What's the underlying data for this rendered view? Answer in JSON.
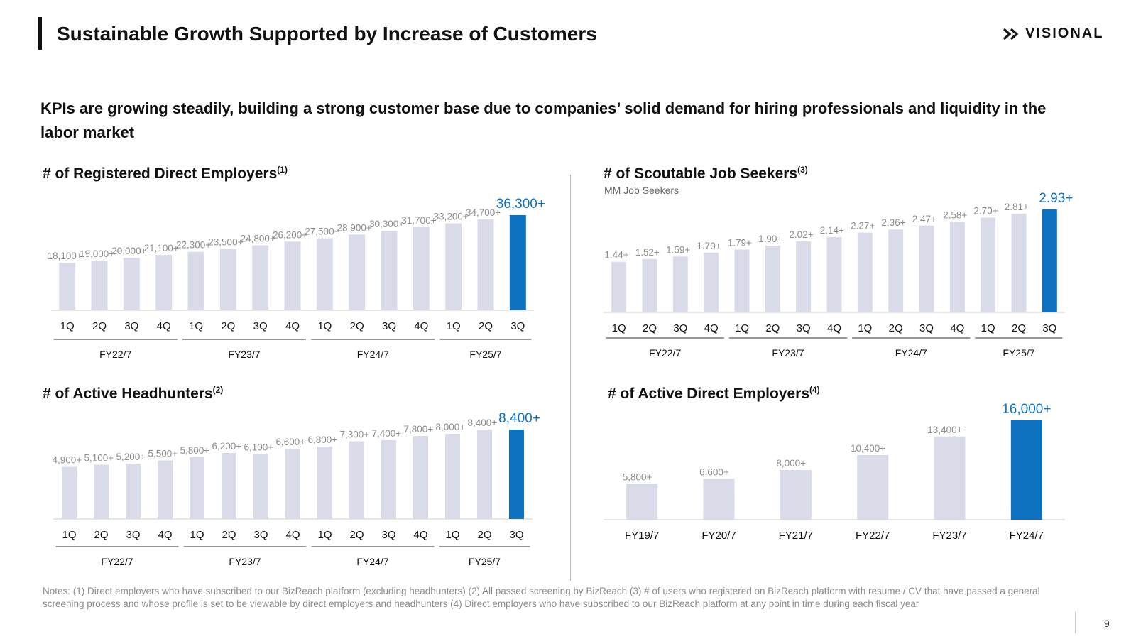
{
  "header": {
    "title": "Sustainable Growth Supported by Increase of Customers",
    "logo_text": "VISIONAL"
  },
  "subtitle": "KPIs are growing steadily, building a strong customer base due to companies’ solid demand for hiring professionals and liquidity in the labor market",
  "colors": {
    "bar": "#d9dce8",
    "highlight": "#0d72c0",
    "label": "#8c8c8c",
    "axis": "#cccccc"
  },
  "chart_data": [
    {
      "id": "registered",
      "type": "bar",
      "title": "# of Registered Direct Employers",
      "note_ref": "(1)",
      "unit": "",
      "categories": [
        "1Q",
        "2Q",
        "3Q",
        "4Q",
        "1Q",
        "2Q",
        "3Q",
        "4Q",
        "1Q",
        "2Q",
        "3Q",
        "4Q",
        "1Q",
        "2Q",
        "3Q"
      ],
      "values": [
        18100,
        19000,
        20000,
        21100,
        22300,
        23500,
        24800,
        26200,
        27500,
        28900,
        30300,
        31700,
        33200,
        34700,
        36300
      ],
      "labels": [
        "18,100+",
        "19,000+",
        "20,000+",
        "21,100+",
        "22,300+",
        "23,500+",
        "24,800+",
        "26,200+",
        "27,500+",
        "28,900+",
        "30,300+",
        "31,700+",
        "33,200+",
        "34,700+",
        "36,300+"
      ],
      "groups": [
        {
          "label": "FY22/7",
          "count": 4
        },
        {
          "label": "FY23/7",
          "count": 4
        },
        {
          "label": "FY24/7",
          "count": 4
        },
        {
          "label": "FY25/7",
          "count": 3
        }
      ],
      "ylim": [
        0,
        36300
      ],
      "highlight_last": true
    },
    {
      "id": "seekers",
      "type": "bar",
      "title": "# of Scoutable Job Seekers",
      "note_ref": "(3)",
      "unit": "MM Job Seekers",
      "categories": [
        "1Q",
        "2Q",
        "3Q",
        "4Q",
        "1Q",
        "2Q",
        "3Q",
        "4Q",
        "1Q",
        "2Q",
        "3Q",
        "4Q",
        "1Q",
        "2Q",
        "3Q"
      ],
      "values": [
        1.44,
        1.52,
        1.59,
        1.7,
        1.79,
        1.9,
        2.02,
        2.14,
        2.27,
        2.36,
        2.47,
        2.58,
        2.7,
        2.81,
        2.93
      ],
      "labels": [
        "1.44+",
        "1.52+",
        "1.59+",
        "1.70+",
        "1.79+",
        "1.90+",
        "2.02+",
        "2.14+",
        "2.27+",
        "2.36+",
        "2.47+",
        "2.58+",
        "2.70+",
        "2.81+",
        "2.93+"
      ],
      "groups": [
        {
          "label": "FY22/7",
          "count": 4
        },
        {
          "label": "FY23/7",
          "count": 4
        },
        {
          "label": "FY24/7",
          "count": 4
        },
        {
          "label": "FY25/7",
          "count": 3
        }
      ],
      "ylim": [
        0,
        2.93
      ],
      "highlight_last": true
    },
    {
      "id": "headhunters",
      "type": "bar",
      "title": "# of Active Headhunters",
      "note_ref": "(2)",
      "unit": "",
      "categories": [
        "1Q",
        "2Q",
        "3Q",
        "4Q",
        "1Q",
        "2Q",
        "3Q",
        "4Q",
        "1Q",
        "2Q",
        "3Q",
        "4Q",
        "1Q",
        "2Q",
        "3Q"
      ],
      "values": [
        4900,
        5100,
        5200,
        5500,
        5800,
        6200,
        6100,
        6600,
        6800,
        7300,
        7400,
        7800,
        8000,
        8400,
        8400
      ],
      "labels": [
        "4,900+",
        "5,100+",
        "5,200+",
        "5,500+",
        "5,800+",
        "6,200+",
        "6,100+",
        "6,600+",
        "6,800+",
        "7,300+",
        "7,400+",
        "7,800+",
        "8,000+",
        "8,400+",
        "8,400+"
      ],
      "groups": [
        {
          "label": "FY22/7",
          "count": 4
        },
        {
          "label": "FY23/7",
          "count": 4
        },
        {
          "label": "FY24/7",
          "count": 4
        },
        {
          "label": "FY25/7",
          "count": 3
        }
      ],
      "ylim": [
        0,
        8400
      ],
      "highlight_last": true
    },
    {
      "id": "active_employers",
      "type": "bar",
      "title": "# of Active Direct Employers",
      "note_ref": "(4)",
      "unit": "",
      "categories": [
        "FY19/7",
        "FY20/7",
        "FY21/7",
        "FY22/7",
        "FY23/7",
        "FY24/7"
      ],
      "values": [
        5800,
        6600,
        8000,
        10400,
        13400,
        16000
      ],
      "labels": [
        "5,800+",
        "6,600+",
        "8,000+",
        "10,400+",
        "13,400+",
        "16,000+"
      ],
      "groups": [],
      "ylim": [
        0,
        16000
      ],
      "highlight_last": true
    }
  ],
  "notes": "Notes: (1) Direct employers who have subscribed to our BizReach platform (excluding headhunters) (2) All passed screening by BizReach (3) # of users who registered on BizReach platform with resume / CV that have passed a general screening process and whose profile is set to be viewable by direct employers and headhunters (4) Direct employers who have subscribed to our BizReach platform at any point in time during each fiscal year",
  "page_number": "9"
}
